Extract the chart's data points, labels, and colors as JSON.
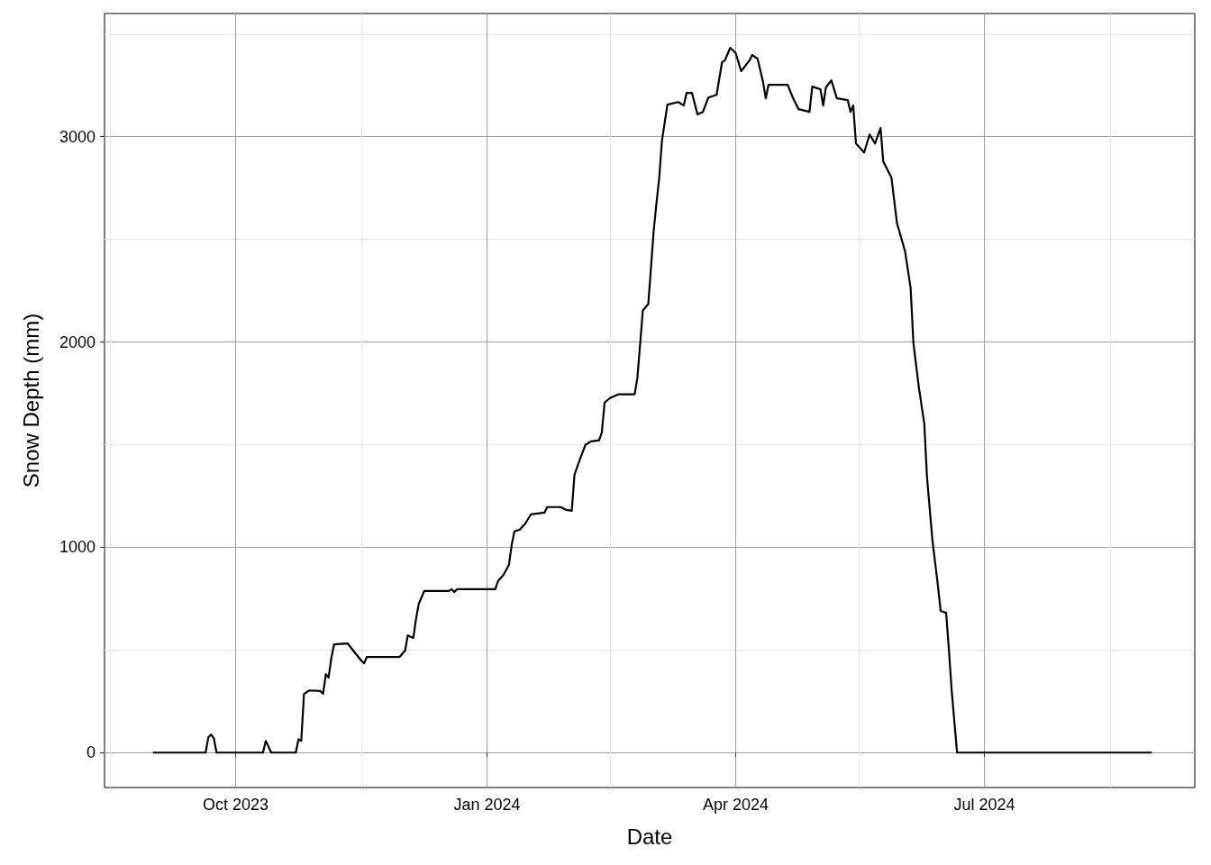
{
  "chart_data": {
    "type": "line",
    "xlabel": "Date",
    "ylabel": "Snow Depth (mm)",
    "grid": true,
    "marker": "none",
    "line_style": "solid",
    "xlim": [
      "2023-08-14",
      "2024-09-16"
    ],
    "xticks": [
      {
        "value": "2023-08-16",
        "label": null
      },
      {
        "value": "2023-10-01",
        "label": "Oct 2023"
      },
      {
        "value": "2023-11-16",
        "label": null
      },
      {
        "value": "2024-01-01",
        "label": "Jan 2024"
      },
      {
        "value": "2024-02-15",
        "label": null
      },
      {
        "value": "2024-04-01",
        "label": "Apr 2024"
      },
      {
        "value": "2024-05-16",
        "label": null
      },
      {
        "value": "2024-07-01",
        "label": "Jul 2024"
      },
      {
        "value": "2024-08-16",
        "label": null
      }
    ],
    "ylim": [
      -170,
      3600
    ],
    "yticks": [
      0,
      {
        "value": 500,
        "label": null
      },
      1000,
      {
        "value": 1500,
        "label": null
      },
      2000,
      {
        "value": 2500,
        "label": null
      },
      3000,
      {
        "value": 3500,
        "label": null
      }
    ],
    "series": [
      {
        "color": "#000000",
        "x": [
          "2023-09-01",
          "2023-09-20",
          "2023-09-21",
          "2023-09-22",
          "2023-09-23",
          "2023-09-24",
          "2023-10-11",
          "2023-10-12",
          "2023-10-13",
          "2023-10-14",
          "2023-10-23",
          "2023-10-24",
          "2023-10-25",
          "2023-10-26",
          "2023-10-27",
          "2023-10-28",
          "2023-11-01",
          "2023-11-02",
          "2023-11-03",
          "2023-11-04",
          "2023-11-05",
          "2023-11-06",
          "2023-11-11",
          "2023-11-13",
          "2023-11-16",
          "2023-11-17",
          "2023-11-18",
          "2023-11-30",
          "2023-12-02",
          "2023-12-03",
          "2023-12-05",
          "2023-12-06",
          "2023-12-07",
          "2023-12-09",
          "2023-12-18",
          "2023-12-19",
          "2023-12-20",
          "2023-12-21",
          "2024-01-04",
          "2024-01-05",
          "2024-01-07",
          "2024-01-09",
          "2024-01-10",
          "2024-01-11",
          "2024-01-13",
          "2024-01-15",
          "2024-01-17",
          "2024-01-22",
          "2024-01-23",
          "2024-01-28",
          "2024-01-30",
          "2024-02-01",
          "2024-02-02",
          "2024-02-04",
          "2024-02-06",
          "2024-02-08",
          "2024-02-11",
          "2024-02-12",
          "2024-02-13",
          "2024-02-15",
          "2024-02-18",
          "2024-02-24",
          "2024-02-25",
          "2024-02-26",
          "2024-02-27",
          "2024-02-29",
          "2024-03-02",
          "2024-03-03",
          "2024-03-04",
          "2024-03-05",
          "2024-03-07",
          "2024-03-11",
          "2024-03-13",
          "2024-03-14",
          "2024-03-16",
          "2024-03-18",
          "2024-03-20",
          "2024-03-22",
          "2024-03-25",
          "2024-03-27",
          "2024-03-28",
          "2024-03-30",
          "2024-04-01",
          "2024-04-03",
          "2024-04-06",
          "2024-04-07",
          "2024-04-09",
          "2024-04-11",
          "2024-04-12",
          "2024-04-13",
          "2024-04-20",
          "2024-04-22",
          "2024-04-24",
          "2024-04-28",
          "2024-04-29",
          "2024-05-02",
          "2024-05-03",
          "2024-05-04",
          "2024-05-06",
          "2024-05-08",
          "2024-05-12",
          "2024-05-13",
          "2024-05-14",
          "2024-05-15",
          "2024-05-18",
          "2024-05-20",
          "2024-05-22",
          "2024-05-24",
          "2024-05-25",
          "2024-05-28",
          "2024-05-30",
          "2024-06-02",
          "2024-06-04",
          "2024-06-05",
          "2024-06-07",
          "2024-06-09",
          "2024-06-10",
          "2024-06-12",
          "2024-06-14",
          "2024-06-15",
          "2024-06-17",
          "2024-06-18",
          "2024-06-19",
          "2024-06-20",
          "2024-06-21",
          "2024-08-31"
        ],
        "values": [
          0,
          0,
          75,
          88,
          70,
          0,
          0,
          57,
          30,
          0,
          0,
          65,
          57,
          286,
          295,
          303,
          300,
          286,
          382,
          365,
          460,
          527,
          532,
          497,
          448,
          435,
          466,
          466,
          497,
          571,
          558,
          650,
          725,
          787,
          787,
          796,
          782,
          796,
          796,
          835,
          866,
          914,
          1011,
          1077,
          1086,
          1116,
          1160,
          1169,
          1196,
          1196,
          1182,
          1178,
          1354,
          1429,
          1499,
          1516,
          1521,
          1560,
          1705,
          1727,
          1745,
          1745,
          1824,
          1987,
          2154,
          2185,
          2545,
          2677,
          2800,
          2980,
          3156,
          3169,
          3152,
          3213,
          3213,
          3108,
          3121,
          3191,
          3204,
          3363,
          3371,
          3433,
          3407,
          3319,
          3371,
          3398,
          3380,
          3266,
          3187,
          3253,
          3253,
          3187,
          3134,
          3121,
          3244,
          3231,
          3152,
          3240,
          3275,
          3187,
          3178,
          3121,
          3152,
          2967,
          2923,
          3011,
          2967,
          3042,
          2879,
          2800,
          2580,
          2440,
          2264,
          2000,
          1780,
          1604,
          1341,
          1033,
          813,
          690,
          681,
          505,
          308,
          154,
          0,
          0
        ]
      }
    ]
  }
}
